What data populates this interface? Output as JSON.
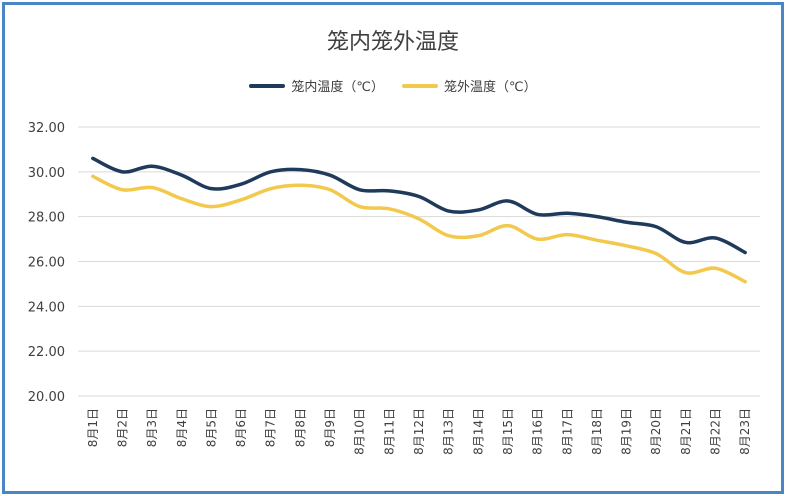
{
  "chart_data": {
    "type": "line",
    "title": "笼内笼外温度",
    "categories": [
      "8月1日",
      "8月2日",
      "8月3日",
      "8月4日",
      "8月5日",
      "8月6日",
      "8月7日",
      "8月8日",
      "8月9日",
      "8月10日",
      "8月11日",
      "8月12日",
      "8月13日",
      "8月14日",
      "8月15日",
      "8月16日",
      "8月17日",
      "8月18日",
      "8月19日",
      "8月20日",
      "8月21日",
      "8月22日",
      "8月23日"
    ],
    "series": [
      {
        "name": "笼内温度（℃）",
        "color": "#1f3a5a",
        "values": [
          30.6,
          30.0,
          30.25,
          29.85,
          29.25,
          29.45,
          30.0,
          30.1,
          29.85,
          29.2,
          29.15,
          28.9,
          28.25,
          28.3,
          28.7,
          28.1,
          28.15,
          28.0,
          27.75,
          27.55,
          26.85,
          27.05,
          26.4
        ]
      },
      {
        "name": "笼外温度（℃）",
        "color": "#f2c94c",
        "values": [
          29.8,
          29.2,
          29.3,
          28.8,
          28.45,
          28.75,
          29.25,
          29.4,
          29.2,
          28.45,
          28.35,
          27.9,
          27.15,
          27.15,
          27.6,
          27.0,
          27.2,
          26.95,
          26.7,
          26.35,
          25.5,
          25.7,
          25.1
        ]
      }
    ],
    "yticks": [
      "32.00",
      "30.00",
      "28.00",
      "26.00",
      "24.00",
      "22.00",
      "20.00"
    ],
    "ylim": [
      20,
      32
    ],
    "grid": true,
    "legend_position": "top"
  }
}
